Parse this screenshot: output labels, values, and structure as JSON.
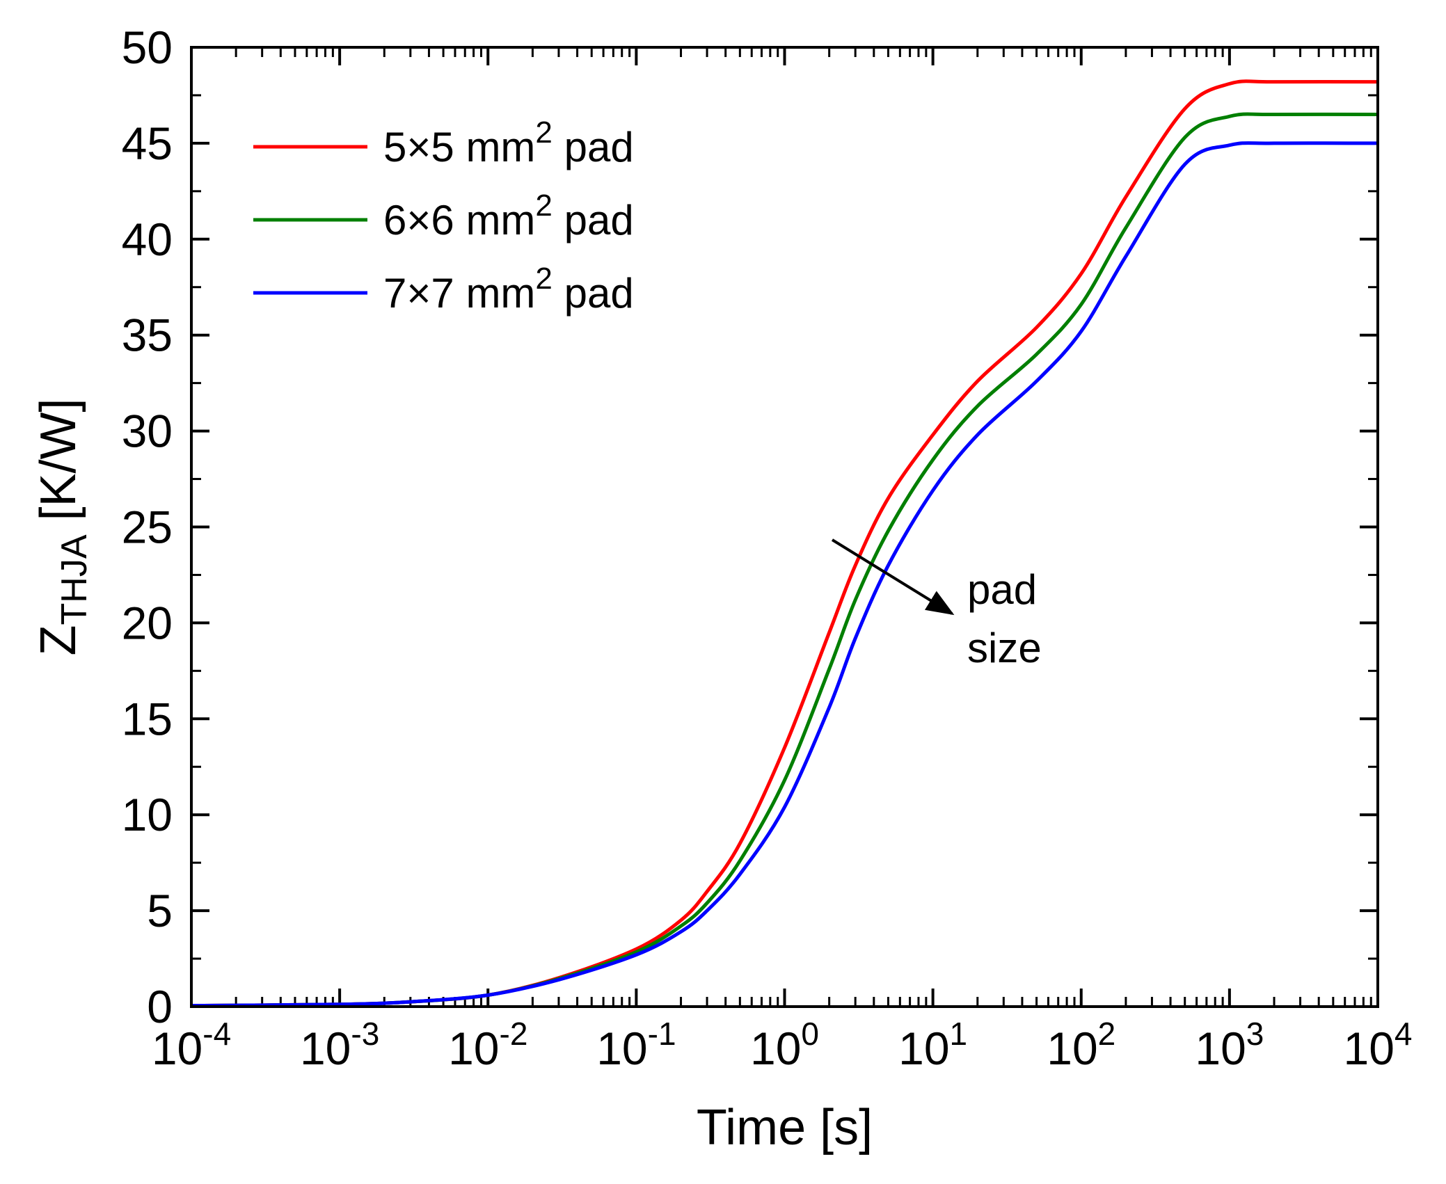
{
  "chart_data": {
    "type": "line",
    "title": "",
    "xlabel": "Time [s]",
    "ylabel": "Z",
    "ylabel_sub": "THJA",
    "ylabel_unit": " [K/W]",
    "xscale": "log",
    "xlim": [
      0.0001,
      10000
    ],
    "ylim": [
      0,
      50
    ],
    "grid": false,
    "legend_position": "top-left",
    "x_ticks": [
      {
        "base": "10",
        "exp": "-4"
      },
      {
        "base": "10",
        "exp": "-3"
      },
      {
        "base": "10",
        "exp": "-2"
      },
      {
        "base": "10",
        "exp": "-1"
      },
      {
        "base": "10",
        "exp": "0"
      },
      {
        "base": "10",
        "exp": "1"
      },
      {
        "base": "10",
        "exp": "2"
      },
      {
        "base": "10",
        "exp": "3"
      },
      {
        "base": "10",
        "exp": "4"
      }
    ],
    "y_ticks": [
      "0",
      "5",
      "10",
      "15",
      "20",
      "25",
      "30",
      "35",
      "40",
      "45",
      "50"
    ],
    "x": [
      0.0001,
      0.001,
      0.003,
      0.01,
      0.03,
      0.1,
      0.2,
      0.3,
      0.5,
      1,
      2,
      3,
      5,
      10,
      20,
      50,
      100,
      200,
      500,
      1000,
      2000,
      10000
    ],
    "series": [
      {
        "name_prefix": "5×5 mm",
        "name_sup": "2",
        "name_suffix": " pad",
        "color": "#ff0000",
        "values": [
          0.05,
          0.12,
          0.25,
          0.6,
          1.5,
          3.0,
          4.5,
          6.0,
          8.5,
          13.5,
          19.5,
          23.0,
          26.5,
          29.8,
          32.6,
          35.4,
          38.2,
          42.2,
          46.8,
          48.1,
          48.2,
          48.2
        ]
      },
      {
        "name_prefix": "6×6 mm",
        "name_sup": "2",
        "name_suffix": " pad",
        "color": "#007f00",
        "values": [
          0.05,
          0.12,
          0.25,
          0.6,
          1.45,
          2.85,
          4.2,
          5.4,
          7.6,
          11.8,
          17.6,
          21.2,
          24.8,
          28.5,
          31.3,
          34.0,
          36.6,
          40.6,
          45.3,
          46.4,
          46.5,
          46.5
        ]
      },
      {
        "name_prefix": "7×7 mm",
        "name_sup": "2",
        "name_suffix": " pad",
        "color": "#0000ff",
        "values": [
          0.05,
          0.12,
          0.25,
          0.6,
          1.4,
          2.7,
          3.9,
          5.0,
          6.9,
          10.4,
          15.6,
          19.2,
          23.0,
          26.9,
          29.8,
          32.6,
          35.2,
          39.1,
          43.9,
          44.9,
          45.0,
          45.0
        ]
      }
    ],
    "annotation": {
      "lines": [
        "pad",
        "size"
      ],
      "arrow_from": [
        0.3,
        24.2
      ],
      "arrow_to": [
        2.2,
        20.6
      ]
    }
  }
}
